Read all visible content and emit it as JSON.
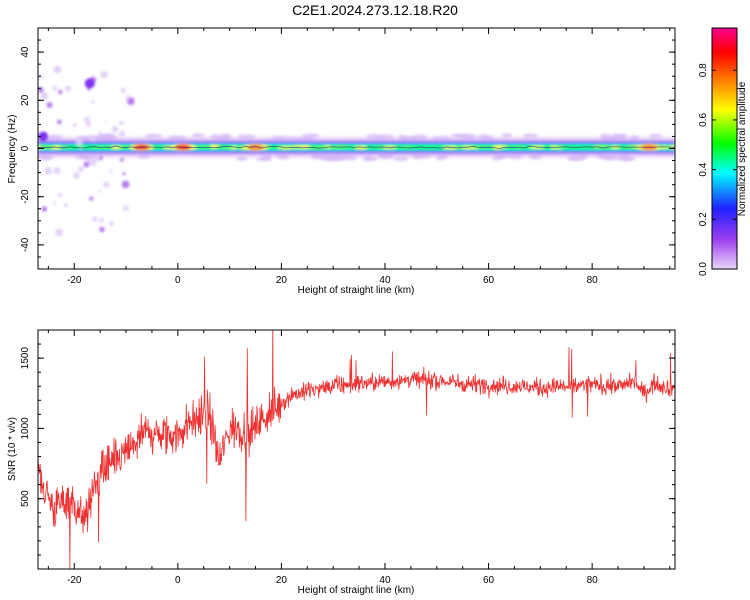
{
  "title": "C2E1.2024.273.12.18.R20",
  "chart_data": [
    {
      "type": "heatmap",
      "xlabel": "Height of straight line (km)",
      "ylabel": "Frequency (Hz)",
      "xlim": [
        -27,
        96
      ],
      "ylim": [
        -50,
        50
      ],
      "x_ticks": [
        "-20",
        "0",
        "20",
        "40",
        "60",
        "80"
      ],
      "y_ticks": [
        "-40",
        "-20",
        "0",
        "20",
        "40"
      ],
      "colorbar": {
        "label": "Normalized spectral amplitude",
        "range": [
          0,
          0.97
        ],
        "ticks": [
          "0.0",
          "0.2",
          "0.4",
          "0.6",
          "0.8"
        ],
        "colors": [
          "#e8d8f8",
          "#a040f0",
          "#2020ff",
          "#00ffff",
          "#00ff00",
          "#ffff00",
          "#ff8000",
          "#ff0000",
          "#ff0090"
        ]
      },
      "peaks": [
        {
          "x": -17,
          "y": 27,
          "amplitude": 0.25
        },
        {
          "x": -26,
          "y": 5,
          "amplitude": 0.3
        },
        {
          "x": -7,
          "y": 0.5,
          "amplitude": 0.9
        },
        {
          "x": 1,
          "y": 0.5,
          "amplitude": 0.95
        },
        {
          "x": 15,
          "y": 0.5,
          "amplitude": 0.8
        },
        {
          "x": 91,
          "y": 0.5,
          "amplitude": 0.85
        }
      ]
    },
    {
      "type": "line",
      "xlabel": "Height of straight line (km)",
      "ylabel": "SNR (10 * v/v)",
      "xlim": [
        -27,
        96
      ],
      "ylim": [
        0,
        1700
      ],
      "x_ticks": [
        "-20",
        "0",
        "20",
        "40",
        "60",
        "80"
      ],
      "y_ticks": [
        "500",
        "1000",
        "1500"
      ],
      "series": [
        {
          "color": "#ee3030",
          "x": [
            -27,
            -24,
            -21,
            -18,
            -15,
            -12,
            -9,
            -6,
            -3,
            0,
            3,
            6,
            8,
            10,
            14,
            18,
            22,
            26,
            30,
            35,
            40,
            45,
            50,
            55,
            60,
            65,
            70,
            75,
            80,
            85,
            88,
            90,
            92,
            95
          ],
          "y": [
            700,
            420,
            520,
            340,
            700,
            760,
            860,
            980,
            930,
            960,
            1060,
            1120,
            760,
            1000,
            980,
            1120,
            1240,
            1270,
            1300,
            1320,
            1330,
            1350,
            1340,
            1320,
            1310,
            1300,
            1290,
            1300,
            1310,
            1300,
            1330,
            1250,
            1320,
            1290
          ]
        }
      ]
    }
  ]
}
